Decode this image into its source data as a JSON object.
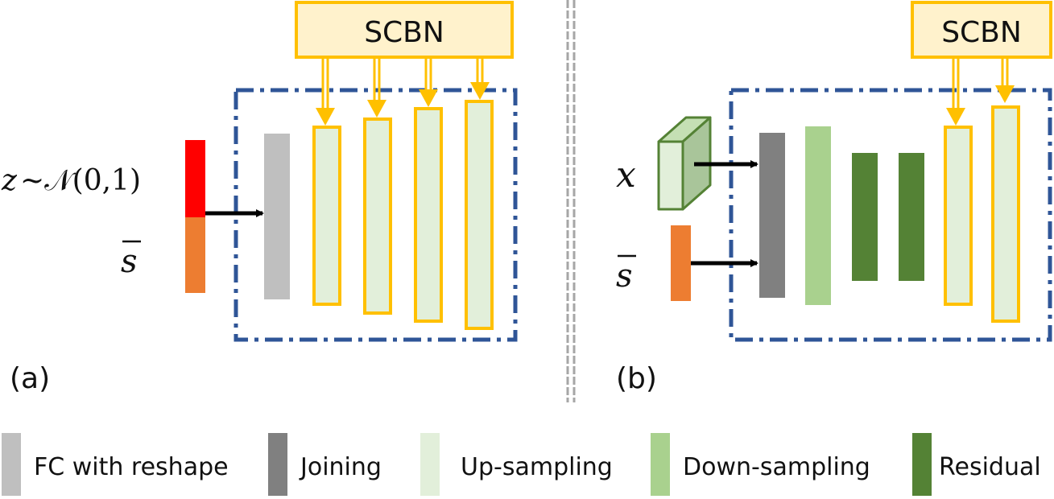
{
  "panel_a": {
    "label": "(a)",
    "scbn_label": "SCBN",
    "noise_label_z": "z",
    "noise_label_dist": "~𝒩(0,1)",
    "style_label": "s"
  },
  "panel_b": {
    "label": "(b)",
    "scbn_label": "SCBN",
    "input_label": "x",
    "style_label": "s"
  },
  "legend": {
    "items": [
      {
        "label": "FC with reshape",
        "color": "#bfbfbf"
      },
      {
        "label": "Joining",
        "color": "#808080"
      },
      {
        "label": "Up-sampling",
        "color": "#e2efda"
      },
      {
        "label": "Down-sampling",
        "color": "#a9d18e"
      },
      {
        "label": "Residual",
        "color": "#548235"
      }
    ]
  },
  "colors": {
    "scbn_fill": "#fff2cc",
    "scbn_border": "#ffc000",
    "dashed_box": "#2f5597",
    "noise_red": "#ff0000",
    "style_orange": "#ed7d31",
    "input_cube": "#e2efda",
    "input_cube_border": "#548235"
  }
}
